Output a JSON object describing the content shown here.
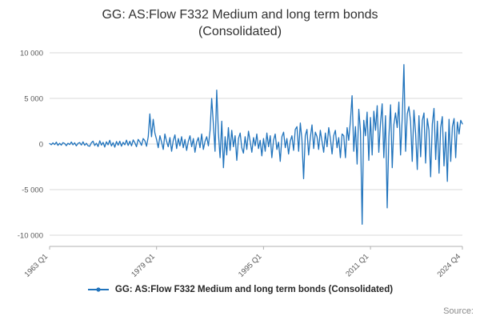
{
  "title_line1": "GG: AS:Flow F332 Medium and long term bonds",
  "title_line2": "(Consolidated)",
  "legend": {
    "label": "GG: AS:Flow F332 Medium and long term bonds (Consolidated)"
  },
  "source_label": "Source:",
  "colors": {
    "line": "#2073bc",
    "grid": "#d9d9d9",
    "axis": "#b0b0b0",
    "tick_text": "#595959"
  },
  "chart_data": {
    "type": "line",
    "title": "GG: AS:Flow F332 Medium and long term bonds (Consolidated)",
    "xlabel": "",
    "ylabel": "",
    "frequency": "quarterly",
    "x_start": "1963 Q1",
    "x_end": "2024 Q4",
    "x_tick_labels": [
      "1963 Q1",
      "1979 Q1",
      "1995 Q1",
      "2011 Q1",
      "2024 Q4"
    ],
    "x_tick_indices": [
      0,
      64,
      128,
      192,
      247
    ],
    "ylim": [
      -10000,
      10000
    ],
    "y_ticks": [
      -10000,
      -5000,
      0,
      5000,
      10000
    ],
    "y_tick_labels": [
      "-10 000",
      "-5 000",
      "0",
      "5 000",
      "10 000"
    ],
    "grid": true,
    "legend_position": "bottom",
    "series": [
      {
        "name": "GG: AS:Flow F332 Medium and long term bonds (Consolidated)",
        "values": [
          50,
          -80,
          120,
          -60,
          200,
          -150,
          80,
          -120,
          150,
          60,
          -180,
          90,
          -60,
          220,
          -90,
          130,
          -200,
          70,
          160,
          -110,
          240,
          -140,
          80,
          -190,
          -250,
          130,
          310,
          -170,
          90,
          -280,
          350,
          -120,
          180,
          -330,
          240,
          -90,
          400,
          -210,
          150,
          -350,
          270,
          -130,
          310,
          -240,
          180,
          -90,
          420,
          -160,
          300,
          -200,
          450,
          150,
          -300,
          500,
          250,
          -150,
          600,
          350,
          -250,
          800,
          3300,
          800,
          2700,
          1200,
          500,
          -400,
          900,
          200,
          -600,
          1100,
          300,
          -300,
          700,
          -800,
          400,
          1000,
          -500,
          600,
          -200,
          800,
          -400,
          500,
          -700,
          300,
          900,
          -300,
          600,
          -900,
          200,
          700,
          -400,
          1100,
          -600,
          300,
          800,
          -200,
          1500,
          5000,
          2200,
          -800,
          5900,
          1200,
          -1500,
          2500,
          -2600,
          800,
          -1200,
          1800,
          -700,
          1500,
          -300,
          900,
          -1800,
          600,
          1200,
          -400,
          -1000,
          800,
          -600,
          1400,
          300,
          -900,
          700,
          -200,
          1100,
          -500,
          400,
          -1300,
          600,
          -800,
          1200,
          -300,
          900,
          -1500,
          400,
          1100,
          -600,
          200,
          -1900,
          800,
          1300,
          -400,
          600,
          -1100,
          300,
          900,
          -700,
          1600,
          1900,
          -800,
          2300,
          500,
          -3800,
          900,
          1600,
          -1200,
          700,
          2100,
          -500,
          1300,
          800,
          -600,
          1500,
          300,
          -900,
          1200,
          -300,
          1800,
          600,
          -1100,
          900,
          1500,
          -400,
          700,
          -1500,
          1100,
          900,
          -1500,
          1800,
          400,
          2500,
          5300,
          -800,
          1900,
          -2200,
          3800,
          1400,
          -8800,
          2600,
          900,
          3500,
          -1800,
          2900,
          -1200,
          3600,
          1500,
          4200,
          -900,
          2300,
          4400,
          -1500,
          3100,
          -7000,
          800,
          4300,
          -2600,
          2100,
          3400,
          1800,
          4600,
          -1200,
          2900,
          8700,
          -800,
          3300,
          4100,
          2500,
          -1900,
          3700,
          1200,
          -2800,
          3100,
          -1400,
          2600,
          3400,
          -2100,
          2800,
          1500,
          -3600,
          2200,
          3900,
          -1700,
          2500,
          -3200,
          1800,
          3000,
          -2400,
          1300,
          -4100,
          2700,
          -1900,
          1900,
          2800,
          -1500,
          2400,
          1100,
          2600,
          2200
        ]
      }
    ]
  }
}
